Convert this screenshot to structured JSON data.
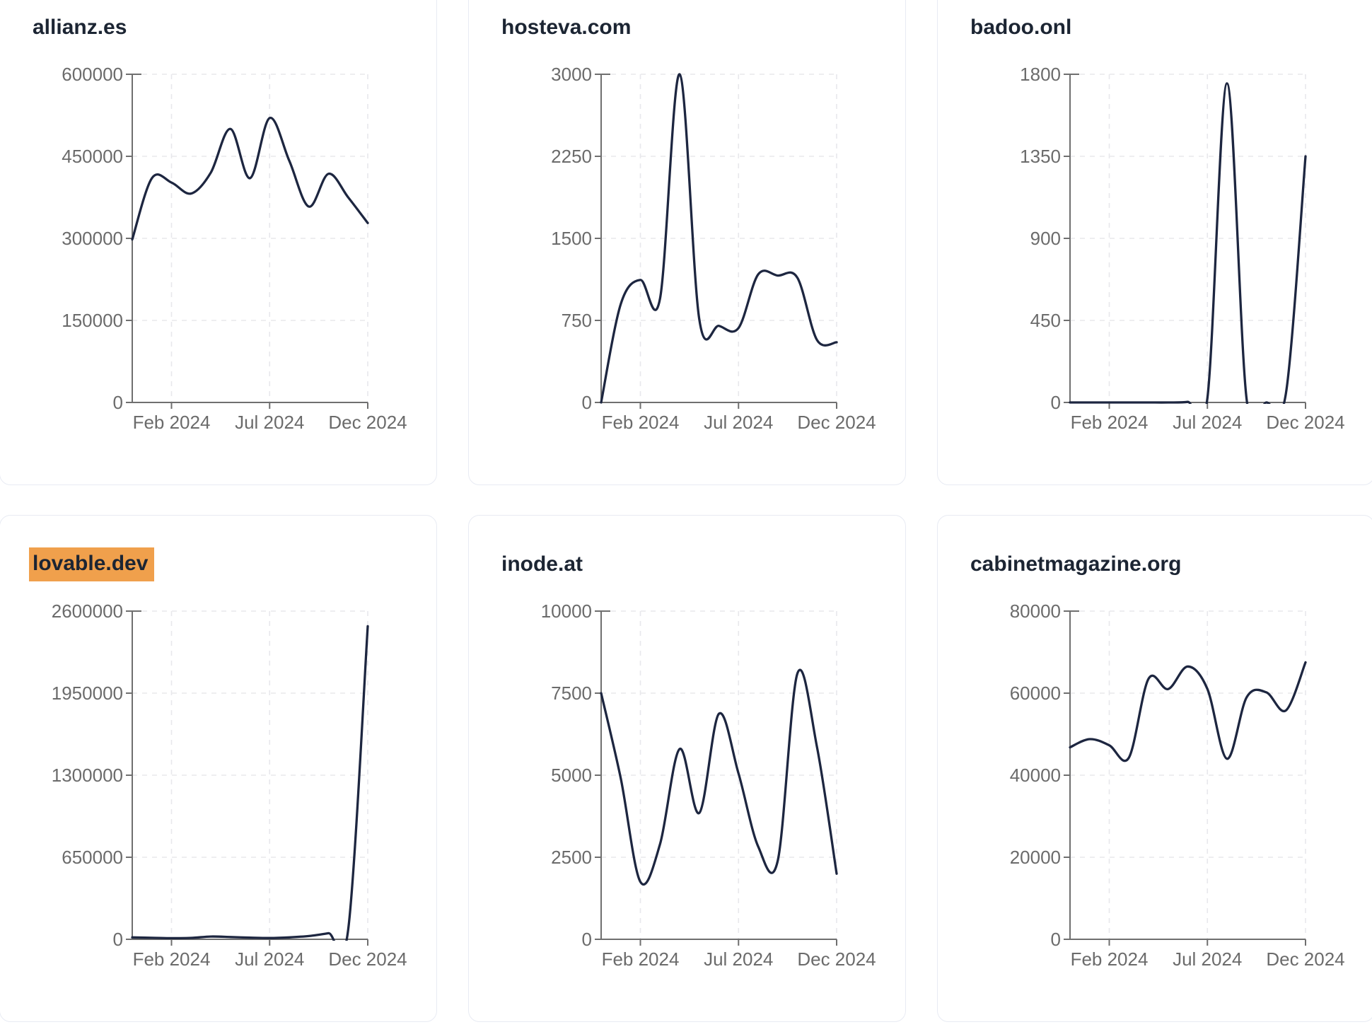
{
  "style": {
    "page_background": "#ffffff",
    "card_background": "#ffffff",
    "card_border": "#e8ebf3",
    "title_color": "#1c2533",
    "highlight_color": "#f0a04c",
    "line_color": "#1d2640",
    "axis_color": "#6f6f6f",
    "tick_label_color": "#6b6b6b",
    "grid_color": "#e8e8ec"
  },
  "chart_data": [
    {
      "type": "line",
      "title": "allianz.es",
      "title_highlighted": false,
      "x": [
        "Dec 2023",
        "Jan 2024",
        "Feb 2024",
        "Mar 2024",
        "Apr 2024",
        "May 2024",
        "Jun 2024",
        "Jul 2024",
        "Aug 2024",
        "Sep 2024",
        "Oct 2024",
        "Nov 2024",
        "Dec 2024"
      ],
      "values": [
        298000,
        410000,
        402000,
        382000,
        420000,
        500000,
        410000,
        520000,
        442000,
        358000,
        418000,
        375000,
        328000
      ],
      "y_ticks": [
        0,
        150000,
        300000,
        450000,
        600000
      ],
      "ylim": [
        0,
        600000
      ],
      "x_tick_labels": [
        "Feb 2024",
        "Jul 2024",
        "Dec 2024"
      ],
      "x_tick_positions": [
        2,
        7,
        12
      ],
      "grid": "dashed",
      "legend": "none"
    },
    {
      "type": "line",
      "title": "hosteva.com",
      "title_highlighted": false,
      "x": [
        "Dec 2023",
        "Jan 2024",
        "Feb 2024",
        "Mar 2024",
        "Apr 2024",
        "May 2024",
        "Jun 2024",
        "Jul 2024",
        "Aug 2024",
        "Sep 2024",
        "Oct 2024",
        "Nov 2024",
        "Dec 2024"
      ],
      "values": [
        0,
        900,
        1120,
        950,
        3000,
        760,
        700,
        680,
        1170,
        1160,
        1140,
        570,
        550
      ],
      "y_ticks": [
        0,
        750,
        1500,
        2250,
        3000
      ],
      "ylim": [
        0,
        3000
      ],
      "x_tick_labels": [
        "Feb 2024",
        "Jul 2024",
        "Dec 2024"
      ],
      "x_tick_positions": [
        2,
        7,
        12
      ],
      "grid": "dashed",
      "legend": "none"
    },
    {
      "type": "line",
      "title": "badoo.onl",
      "title_highlighted": false,
      "x": [
        "Dec 2023",
        "Jan 2024",
        "Feb 2024",
        "Mar 2024",
        "Apr 2024",
        "May 2024",
        "Jun 2024",
        "Jul 2024",
        "Aug 2024",
        "Sep 2024",
        "Oct 2024",
        "Nov 2024",
        "Dec 2024"
      ],
      "values": [
        0,
        0,
        0,
        0,
        0,
        0,
        3,
        25,
        1750,
        15,
        0,
        50,
        1350
      ],
      "y_ticks": [
        0,
        450,
        900,
        1350,
        1800
      ],
      "ylim": [
        0,
        1800
      ],
      "x_tick_labels": [
        "Feb 2024",
        "Jul 2024",
        "Dec 2024"
      ],
      "x_tick_positions": [
        2,
        7,
        12
      ],
      "grid": "dashed",
      "legend": "none"
    },
    {
      "type": "line",
      "title": "lovable.dev",
      "title_highlighted": true,
      "x": [
        "Dec 2023",
        "Jan 2024",
        "Feb 2024",
        "Mar 2024",
        "Apr 2024",
        "May 2024",
        "Jun 2024",
        "Jul 2024",
        "Aug 2024",
        "Sep 2024",
        "Oct 2024",
        "Nov 2024",
        "Dec 2024"
      ],
      "values": [
        15000,
        12000,
        9000,
        11000,
        22000,
        18000,
        13000,
        10000,
        15000,
        26000,
        48000,
        75000,
        2480000
      ],
      "y_ticks": [
        0,
        650000,
        1300000,
        1950000,
        2600000
      ],
      "ylim": [
        0,
        2600000
      ],
      "x_tick_labels": [
        "Feb 2024",
        "Jul 2024",
        "Dec 2024"
      ],
      "x_tick_positions": [
        2,
        7,
        12
      ],
      "grid": "dashed",
      "legend": "none"
    },
    {
      "type": "line",
      "title": "inode.at",
      "title_highlighted": false,
      "x": [
        "Dec 2023",
        "Jan 2024",
        "Feb 2024",
        "Mar 2024",
        "Apr 2024",
        "May 2024",
        "Jun 2024",
        "Jul 2024",
        "Aug 2024",
        "Sep 2024",
        "Oct 2024",
        "Nov 2024",
        "Dec 2024"
      ],
      "values": [
        7500,
        4900,
        1750,
        2900,
        5800,
        3850,
        6870,
        5050,
        2830,
        2400,
        8100,
        5850,
        2000
      ],
      "y_ticks": [
        0,
        2500,
        5000,
        7500,
        10000
      ],
      "ylim": [
        0,
        10000
      ],
      "x_tick_labels": [
        "Feb 2024",
        "Jul 2024",
        "Dec 2024"
      ],
      "x_tick_positions": [
        2,
        7,
        12
      ],
      "grid": "dashed",
      "legend": "none"
    },
    {
      "type": "line",
      "title": "cabinetmagazine.org",
      "title_highlighted": false,
      "x": [
        "Dec 2023",
        "Jan 2024",
        "Feb 2024",
        "Mar 2024",
        "Apr 2024",
        "May 2024",
        "Jun 2024",
        "Jul 2024",
        "Aug 2024",
        "Sep 2024",
        "Oct 2024",
        "Nov 2024",
        "Dec 2024"
      ],
      "values": [
        46800,
        48800,
        47300,
        44300,
        63500,
        61000,
        66500,
        61000,
        44000,
        59000,
        60200,
        55800,
        67500
      ],
      "y_ticks": [
        0,
        20000,
        40000,
        60000,
        80000
      ],
      "ylim": [
        0,
        80000
      ],
      "x_tick_labels": [
        "Feb 2024",
        "Jul 2024",
        "Dec 2024"
      ],
      "x_tick_positions": [
        2,
        7,
        12
      ],
      "grid": "dashed",
      "legend": "none"
    }
  ]
}
